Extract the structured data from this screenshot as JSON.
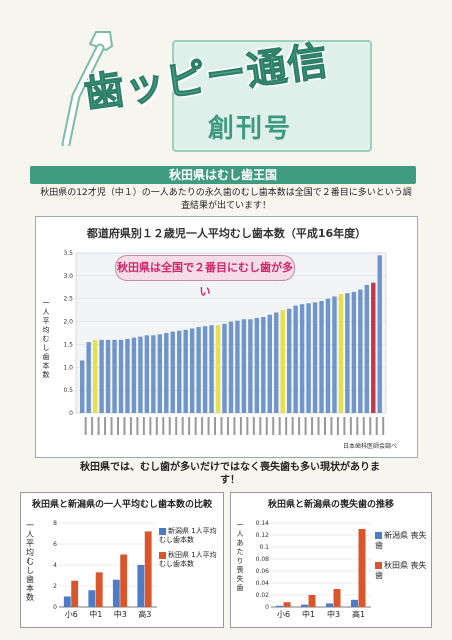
{
  "header": {
    "title": "歯ッピー通信",
    "subtitle": "創刊号"
  },
  "banner": "秋田県はむし歯王国",
  "intro": "秋田県の12才児（中１）の一人あたりの永久歯のむし歯本数は全国で２番目に多いという調査結果が出ています！",
  "main_chart": {
    "title": "都道府県別１２歳児一人平均むし歯本数（平成16年度）",
    "callout": "秋田県は全国で２番目にむし歯が多い",
    "ylabel": "一人平均むし歯本数",
    "source": "日本歯科医師会調べ",
    "colors": {
      "normal": "#6f95c9",
      "highlight": "#e6e04a",
      "akita": "#c0394f"
    }
  },
  "middle_text": "秋田県では、むし歯が多いだけではなく喪失歯も多い現状があります！",
  "chart_data": [
    {
      "type": "bar",
      "title": "都道府県別１２歳児一人平均むし歯本数（平成16年度）",
      "ylabel": "一人平均むし歯本数",
      "ylim": [
        0,
        3.5
      ],
      "yticks": [
        "0",
        "0.5",
        "1.0",
        "1.5",
        "2.0",
        "2.5",
        "3.0",
        "3.5"
      ],
      "values": [
        1.15,
        1.55,
        1.6,
        1.6,
        1.6,
        1.6,
        1.6,
        1.62,
        1.65,
        1.67,
        1.7,
        1.7,
        1.72,
        1.75,
        1.78,
        1.8,
        1.82,
        1.85,
        1.88,
        1.9,
        1.92,
        1.92,
        1.95,
        2.0,
        2.02,
        2.05,
        2.05,
        2.08,
        2.1,
        2.15,
        2.2,
        2.25,
        2.28,
        2.35,
        2.38,
        2.4,
        2.42,
        2.45,
        2.5,
        2.55,
        2.6,
        2.62,
        2.65,
        2.7,
        2.8,
        2.85,
        3.45
      ],
      "highlight_index": [
        2,
        21,
        31,
        40
      ],
      "akita_index": 45
    },
    {
      "type": "bar",
      "title": "秋田県と新潟県の一人平均むし歯本数の比較",
      "ylabel": "一人平均むし歯本数",
      "categories": [
        "小6",
        "中1",
        "中3",
        "高3"
      ],
      "series": [
        {
          "name": "新潟県 1人平均 むし歯本数",
          "values": [
            1.0,
            1.6,
            2.6,
            4.0
          ]
        },
        {
          "name": "秋田県 1人平均 むし歯本数",
          "values": [
            2.5,
            3.3,
            5.0,
            7.2
          ]
        }
      ],
      "ylim": [
        0,
        8
      ],
      "yticks": [
        "0",
        "2",
        "4",
        "6",
        "8"
      ]
    },
    {
      "type": "bar",
      "title": "秋田県と新潟県の喪失歯の推移",
      "ylabel": "一人あたり喪失歯",
      "categories": [
        "小6",
        "中1",
        "中3",
        "高1"
      ],
      "series": [
        {
          "name": "新潟県 喪失歯",
          "values": [
            0.002,
            0.004,
            0.006,
            0.012
          ]
        },
        {
          "name": "秋田県 喪失歯",
          "values": [
            0.008,
            0.02,
            0.03,
            0.13
          ]
        }
      ],
      "ylim": [
        0,
        0.14
      ],
      "yticks": [
        "0",
        "0.02",
        "0.04",
        "0.06",
        "0.08",
        "0.1",
        "0.12",
        "0.14"
      ]
    }
  ],
  "legend_colors": {
    "niigata": "#4c7cc7",
    "akita": "#d9552a"
  }
}
